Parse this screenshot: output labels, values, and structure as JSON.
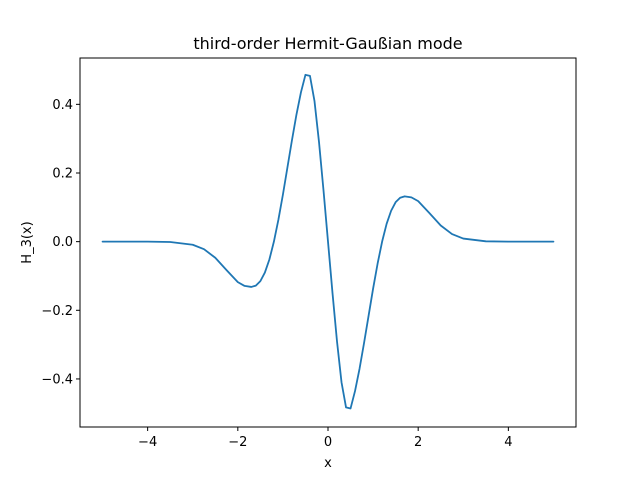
{
  "chart_data": {
    "type": "line",
    "title": "third-order Hermit-Gaußian mode",
    "xlabel": "x",
    "ylabel": "H_3(x)",
    "xlim": [
      -5.5,
      5.5
    ],
    "ylim": [
      -0.54,
      0.535
    ],
    "grid": false,
    "legend": "none",
    "line_color": "#1f77b4",
    "x_ticks": [
      -4,
      -2,
      0,
      2,
      4
    ],
    "x_tick_labels": [
      "−4",
      "−2",
      "0",
      "2",
      "4"
    ],
    "y_ticks": [
      -0.4,
      -0.2,
      0.0,
      0.2,
      0.4
    ],
    "y_tick_labels": [
      "−0.4",
      "−0.2",
      "0.0",
      "0.2",
      "0.4"
    ],
    "series": [
      {
        "x": [
          -5.0,
          -4.5,
          -4.0,
          -3.5,
          -3.0,
          -2.75,
          -2.5,
          -2.25,
          -2.0,
          -1.85,
          -1.7,
          -1.6,
          -1.5,
          -1.4,
          -1.3,
          -1.2,
          -1.1,
          -1.0,
          -0.9,
          -0.8,
          -0.7,
          -0.6,
          -0.5,
          -0.4,
          -0.3,
          -0.2,
          -0.1,
          0.0,
          0.1,
          0.2,
          0.3,
          0.4,
          0.5,
          0.6,
          0.7,
          0.8,
          0.9,
          1.0,
          1.1,
          1.2,
          1.3,
          1.4,
          1.5,
          1.6,
          1.7,
          1.85,
          2.0,
          2.25,
          2.5,
          2.75,
          3.0,
          3.5,
          4.0,
          4.5,
          5.0
        ],
        "y": [
          0.0,
          0.0,
          0.0,
          -0.001,
          -0.009,
          -0.022,
          -0.047,
          -0.083,
          -0.118,
          -0.129,
          -0.132,
          -0.128,
          -0.115,
          -0.09,
          -0.052,
          0.0,
          0.064,
          0.137,
          0.216,
          0.295,
          0.37,
          0.435,
          0.486,
          0.483,
          0.41,
          0.291,
          0.15,
          0.0,
          -0.15,
          -0.291,
          -0.41,
          -0.483,
          -0.486,
          -0.435,
          -0.37,
          -0.295,
          -0.216,
          -0.137,
          -0.064,
          0.0,
          0.052,
          0.09,
          0.115,
          0.128,
          0.132,
          0.129,
          0.118,
          0.083,
          0.047,
          0.022,
          0.009,
          0.001,
          0.0,
          0.0,
          0.0
        ]
      }
    ]
  }
}
